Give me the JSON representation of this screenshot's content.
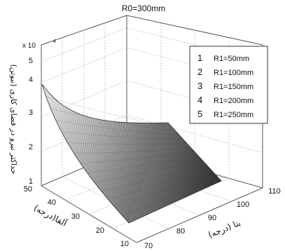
{
  "chart_data": {
    "type": "surface",
    "title": "R0=300mm",
    "xlabel": "بتا (درجه)",
    "ylabel": "آلفا(درجه)",
    "zlabel": "حداکثر نیرو در فضای کاری (نیوتن)",
    "exponent_label": "x 10",
    "exponent_power": "4",
    "x_ticks": [
      "70",
      "80",
      "90",
      "100",
      "110"
    ],
    "y_ticks": [
      "10",
      "20",
      "30",
      "40",
      "50"
    ],
    "z_ticks": [
      "1",
      "2",
      "3",
      "4",
      "5"
    ],
    "xlim": [
      70,
      110
    ],
    "ylim": [
      10,
      50
    ],
    "zlim": [
      10000,
      50000
    ],
    "legend_position": "upper-right",
    "legend": [
      {
        "index": "1",
        "label": "R1=50mm"
      },
      {
        "index": "2",
        "label": "R1=100mm"
      },
      {
        "index": "3",
        "label": "R1=150mm"
      },
      {
        "index": "4",
        "label": "R1=200mm"
      },
      {
        "index": "5",
        "label": "R1=250mm"
      }
    ],
    "surface_samples": [
      {
        "beta": 70,
        "alpha": 50,
        "force": 43000
      },
      {
        "beta": 70,
        "alpha": 10,
        "force": 32000
      },
      {
        "beta": 90,
        "alpha": 50,
        "force": 17000
      },
      {
        "beta": 110,
        "alpha": 50,
        "force": 14000
      },
      {
        "beta": 110,
        "alpha": 10,
        "force": 10000
      }
    ]
  }
}
